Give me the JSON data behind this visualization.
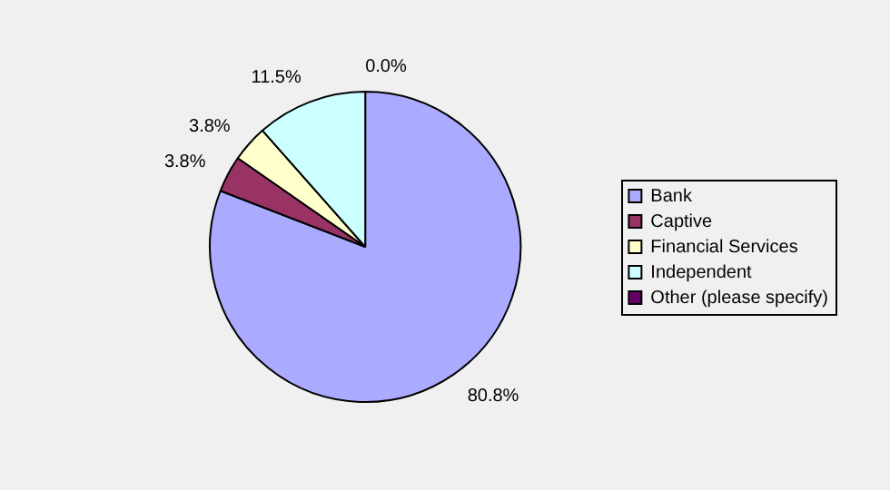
{
  "chart_data": {
    "type": "pie",
    "categories": [
      "Bank",
      "Captive",
      "Financial Services",
      "Independent",
      "Other (please specify)"
    ],
    "values": [
      80.8,
      3.8,
      3.8,
      11.5,
      0.0
    ],
    "colors": [
      "#aaaaff",
      "#993366",
      "#ffffcc",
      "#ccffff",
      "#660066"
    ],
    "value_labels": [
      "80.8%",
      "3.8%",
      "3.8%",
      "11.5%",
      "0.0%"
    ],
    "legend": "right"
  }
}
